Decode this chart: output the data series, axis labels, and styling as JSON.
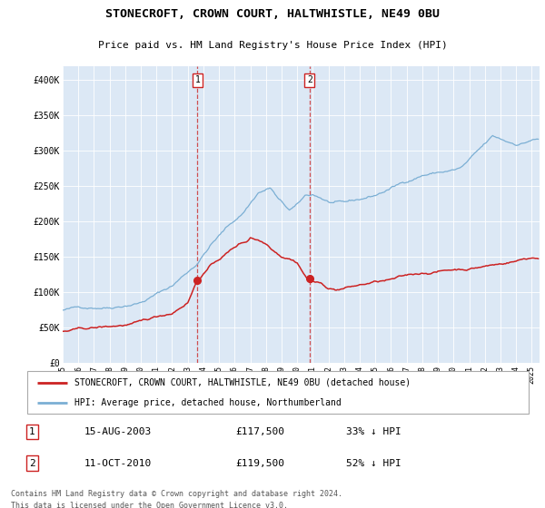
{
  "title": "STONECROFT, CROWN COURT, HALTWHISTLE, NE49 0BU",
  "subtitle": "Price paid vs. HM Land Registry's House Price Index (HPI)",
  "ylim": [
    0,
    420000
  ],
  "yticks": [
    0,
    50000,
    100000,
    150000,
    200000,
    250000,
    300000,
    350000,
    400000
  ],
  "ytick_labels": [
    "£0",
    "£50K",
    "£100K",
    "£150K",
    "£200K",
    "£250K",
    "£300K",
    "£350K",
    "£400K"
  ],
  "background_color": "#ffffff",
  "plot_bg_color": "#dce8f5",
  "hpi_color": "#7bafd4",
  "price_color": "#cc2222",
  "marker_color": "#cc2222",
  "vline_color": "#cc3333",
  "legend_label_price": "STONECROFT, CROWN COURT, HALTWHISTLE, NE49 0BU (detached house)",
  "legend_label_hpi": "HPI: Average price, detached house, Northumberland",
  "transaction1_date": "15-AUG-2003",
  "transaction1_price": "£117,500",
  "transaction1_info": "33% ↓ HPI",
  "transaction2_date": "11-OCT-2010",
  "transaction2_price": "£119,500",
  "transaction2_info": "52% ↓ HPI",
  "footer": "Contains HM Land Registry data © Crown copyright and database right 2024.\nThis data is licensed under the Open Government Licence v3.0.",
  "xstart": 1995.0,
  "xend": 2025.5
}
